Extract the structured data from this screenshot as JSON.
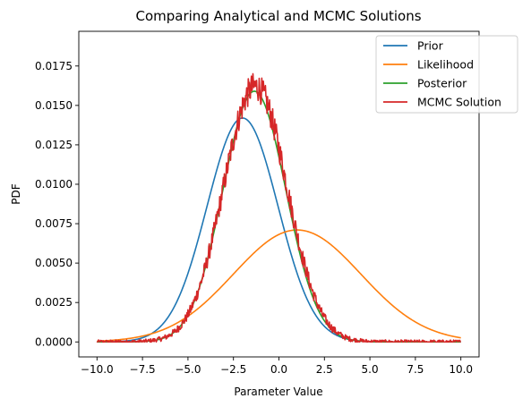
{
  "chart_data": {
    "type": "line",
    "title": "Comparing Analytical and MCMC Solutions",
    "xlabel": "Parameter Value",
    "ylabel": "PDF",
    "xlim": [
      -11,
      11
    ],
    "ylim": [
      -0.00095,
      0.0197
    ],
    "xticks": [
      -10,
      -7.5,
      -5,
      -2.5,
      0,
      2.5,
      5,
      7.5,
      10
    ],
    "xtick_labels": [
      "−10.0",
      "−7.5",
      "−5.0",
      "−2.5",
      "0.0",
      "2.5",
      "5.0",
      "7.5",
      "10.0"
    ],
    "yticks": [
      0,
      0.0025,
      0.005,
      0.0075,
      0.01,
      0.0125,
      0.015,
      0.0175
    ],
    "ytick_labels": [
      "0.0000",
      "0.0025",
      "0.0050",
      "0.0075",
      "0.0100",
      "0.0125",
      "0.0150",
      "0.0175"
    ],
    "grid": false,
    "legend_position": "top-right",
    "series": [
      {
        "name": "Prior",
        "color": "#1f77b4",
        "kind": "gaussian",
        "mean": -2.0,
        "sd": 1.95,
        "peak": 0.0142,
        "x_range": [
          -10,
          10
        ]
      },
      {
        "name": "Likelihood",
        "color": "#ff7f0e",
        "kind": "gaussian",
        "mean": 1.0,
        "sd": 3.5,
        "peak": 0.0071,
        "x_range": [
          -10,
          10
        ]
      },
      {
        "name": "Posterior",
        "color": "#2ca02c",
        "kind": "gaussian",
        "mean": -1.35,
        "sd": 1.73,
        "peak": 0.0159,
        "x_range": [
          -10,
          10
        ]
      },
      {
        "name": "MCMC Solution",
        "color": "#d62728",
        "kind": "noisy_gaussian",
        "mean": -1.3,
        "sd": 1.75,
        "peak": 0.0162,
        "noise": 0.0009,
        "x_range": [
          -10,
          10
        ]
      }
    ]
  }
}
